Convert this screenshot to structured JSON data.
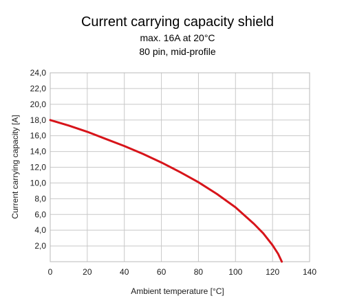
{
  "chart_data": {
    "type": "line",
    "title": "Current carrying capacity shield",
    "subtitles": [
      "max. 16A at 20°C",
      "80 pin, mid-profile"
    ],
    "xlabel": "Ambient temperature [°C]",
    "ylabel": "Current carrying capacity [A]",
    "xlim": [
      0,
      140
    ],
    "ylim": [
      0,
      24
    ],
    "x_ticks": [
      "0",
      "20",
      "40",
      "60",
      "80",
      "100",
      "120",
      "140"
    ],
    "y_ticks": [
      "2,0",
      "4,0",
      "6,0",
      "8,0",
      "10,0",
      "12,0",
      "14,0",
      "16,0",
      "18,0",
      "20,0",
      "22,0",
      "24,0"
    ],
    "grid": true,
    "series": [
      {
        "color": "#d7141a",
        "x": [
          0,
          10,
          20,
          30,
          40,
          50,
          60,
          70,
          80,
          90,
          100,
          110,
          115,
          120,
          123,
          125
        ],
        "y": [
          18.0,
          17.3,
          16.5,
          15.6,
          14.7,
          13.7,
          12.6,
          11.4,
          10.1,
          8.6,
          6.9,
          4.8,
          3.6,
          2.1,
          1.0,
          0.0
        ]
      }
    ]
  }
}
